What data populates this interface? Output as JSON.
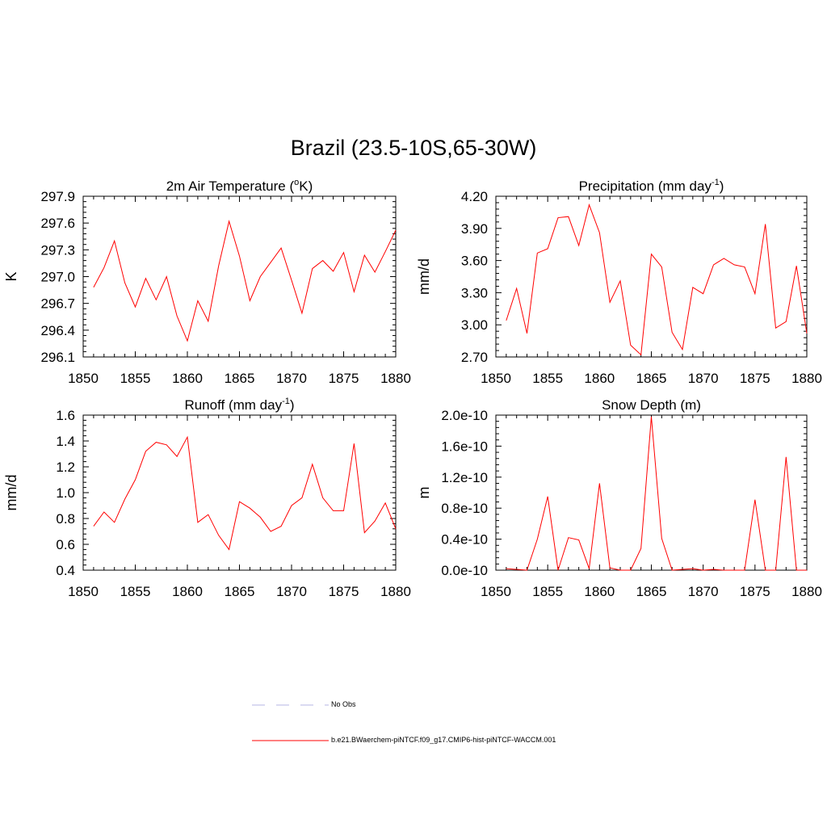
{
  "title": "Brazil (23.5-10S,65-30W)",
  "colors": {
    "model": "#ff0000",
    "obs": "#b4b4e6",
    "axis": "#000000"
  },
  "legend": {
    "obs_label": "No Obs",
    "model_label": "b.e21.BWaerchem-piNTCF.f09_g17.CMIP6-hist-piNTCF-WACCM.001"
  },
  "chart_data": [
    {
      "type": "line",
      "title": "2m Air Temperature (",
      "title_sup": "o",
      "title_after": "K)",
      "ylabel": "K",
      "xlim": [
        1850,
        1880
      ],
      "ylim": [
        296.1,
        297.9
      ],
      "xticks": [
        1850,
        1855,
        1860,
        1865,
        1870,
        1875,
        1880
      ],
      "yticks": [
        "296.1",
        "296.4",
        "296.7",
        "297.0",
        "297.3",
        "297.6",
        "297.9"
      ],
      "series": [
        {
          "x": [
            1851,
            1852,
            1853,
            1854,
            1855,
            1856,
            1857,
            1858,
            1859,
            1860,
            1861,
            1862,
            1863,
            1864,
            1865,
            1866,
            1867,
            1868,
            1869,
            1870,
            1871,
            1872,
            1873,
            1874,
            1875,
            1876,
            1877,
            1878,
            1879,
            1880
          ],
          "values": [
            296.88,
            297.1,
            297.4,
            296.93,
            296.66,
            296.98,
            296.74,
            297.0,
            296.56,
            296.28,
            296.73,
            296.5,
            297.12,
            297.62,
            297.23,
            296.73,
            297.0,
            297.16,
            297.32,
            296.96,
            296.59,
            297.09,
            297.18,
            297.06,
            297.27,
            296.83,
            297.24,
            297.05,
            297.28,
            297.52
          ]
        }
      ]
    },
    {
      "type": "line",
      "title": "Precipitation (mm day",
      "title_sup": "-1",
      "title_after": ")",
      "ylabel": "mm/d",
      "xlim": [
        1850,
        1880
      ],
      "ylim": [
        2.7,
        4.2
      ],
      "xticks": [
        1850,
        1855,
        1860,
        1865,
        1870,
        1875,
        1880
      ],
      "yticks": [
        "2.70",
        "3.00",
        "3.30",
        "3.60",
        "3.90",
        "4.20"
      ],
      "series": [
        {
          "x": [
            1851,
            1852,
            1853,
            1854,
            1855,
            1856,
            1857,
            1858,
            1859,
            1860,
            1861,
            1862,
            1863,
            1864,
            1865,
            1866,
            1867,
            1868,
            1869,
            1870,
            1871,
            1872,
            1873,
            1874,
            1875,
            1876,
            1877,
            1878,
            1879,
            1880
          ],
          "values": [
            3.04,
            3.34,
            2.92,
            3.67,
            3.71,
            4.0,
            4.01,
            3.74,
            4.12,
            3.86,
            3.21,
            3.41,
            2.81,
            2.72,
            3.66,
            3.54,
            2.93,
            2.77,
            3.35,
            3.29,
            3.56,
            3.62,
            3.56,
            3.54,
            3.29,
            3.94,
            2.97,
            3.03,
            3.55,
            2.92
          ]
        }
      ]
    },
    {
      "type": "line",
      "title": "Runoff (mm day",
      "title_sup": "-1",
      "title_after": ")",
      "ylabel": "mm/d",
      "xlim": [
        1850,
        1880
      ],
      "ylim": [
        0.4,
        1.6
      ],
      "xticks": [
        1850,
        1855,
        1860,
        1865,
        1870,
        1875,
        1880
      ],
      "yticks": [
        "0.4",
        "0.6",
        "0.8",
        "1.0",
        "1.2",
        "1.4",
        "1.6"
      ],
      "series": [
        {
          "x": [
            1851,
            1852,
            1853,
            1854,
            1855,
            1856,
            1857,
            1858,
            1859,
            1860,
            1861,
            1862,
            1863,
            1864,
            1865,
            1866,
            1867,
            1868,
            1869,
            1870,
            1871,
            1872,
            1873,
            1874,
            1875,
            1876,
            1877,
            1878,
            1879,
            1880
          ],
          "values": [
            0.74,
            0.85,
            0.77,
            0.95,
            1.1,
            1.32,
            1.39,
            1.37,
            1.28,
            1.43,
            0.77,
            0.83,
            0.67,
            0.56,
            0.93,
            0.88,
            0.81,
            0.7,
            0.74,
            0.9,
            0.96,
            1.22,
            0.96,
            0.86,
            0.86,
            1.38,
            0.69,
            0.78,
            0.92,
            0.72
          ]
        }
      ]
    },
    {
      "type": "line",
      "title": "Snow Depth (m)",
      "title_sup": "",
      "title_after": "",
      "ylabel": "m",
      "xlim": [
        1850,
        1880
      ],
      "ylim": [
        0,
        2e-10
      ],
      "xticks": [
        1850,
        1855,
        1860,
        1865,
        1870,
        1875,
        1880
      ],
      "yticks": [
        "0.0e-10",
        "0.4e-10",
        "0.8e-10",
        "1.2e-10",
        "1.6e-10",
        "2.0e-10"
      ],
      "series": [
        {
          "x": [
            1851,
            1852,
            1853,
            1854,
            1855,
            1856,
            1857,
            1858,
            1859,
            1860,
            1861,
            1862,
            1863,
            1864,
            1865,
            1866,
            1867,
            1868,
            1869,
            1870,
            1871,
            1872,
            1873,
            1874,
            1875,
            1876,
            1877,
            1878,
            1879,
            1880
          ],
          "values": [
            2e-12,
            1e-12,
            0,
            4e-11,
            9.5e-11,
            0,
            4.2e-11,
            3.9e-11,
            2e-12,
            1.12e-10,
            3e-12,
            0,
            0,
            2.8e-11,
            1.98e-10,
            4.1e-11,
            0,
            1e-12,
            2e-12,
            0,
            1e-12,
            0,
            0,
            0,
            9.1e-11,
            0,
            0,
            1.46e-10,
            0,
            0
          ]
        }
      ]
    }
  ]
}
